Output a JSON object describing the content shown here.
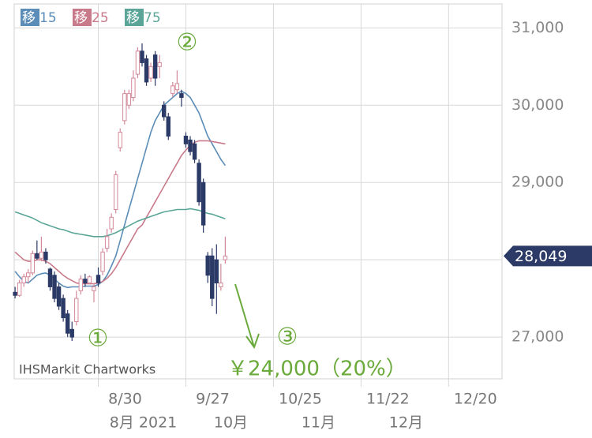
{
  "chart_data": {
    "type": "candlestick",
    "open": [
      27580,
      27540,
      27700,
      27780,
      27830,
      28080,
      28020,
      28100,
      27880,
      27800,
      27650,
      27500,
      27300,
      27100,
      27200,
      27600,
      27750,
      27700,
      27600,
      27800,
      27850,
      28150,
      28400,
      28650,
      29450,
      29800,
      30000,
      30100,
      30400,
      30700,
      30600,
      30350,
      30650,
      30500,
      30000,
      29850,
      30150,
      30200,
      30150,
      29600,
      29550,
      29500,
      29250,
      29000,
      28050,
      28050,
      28000,
      27650,
      28000
    ],
    "high": [
      27650,
      27740,
      27820,
      27880,
      28120,
      28250,
      28300,
      28150,
      27900,
      27850,
      27700,
      27550,
      27350,
      27200,
      27600,
      27800,
      27820,
      27800,
      27700,
      27900,
      28150,
      28400,
      28600,
      29150,
      29700,
      30200,
      30200,
      30450,
      30750,
      30800,
      30650,
      30550,
      30700,
      30650,
      30050,
      29900,
      30300,
      30450,
      30200,
      29650,
      29600,
      29550,
      29300,
      29050,
      28100,
      28150,
      28200,
      27950,
      28300
    ],
    "low": [
      27500,
      27520,
      27650,
      27700,
      27800,
      28000,
      27980,
      27950,
      27600,
      27450,
      27350,
      27200,
      27000,
      26950,
      27150,
      27550,
      27650,
      27680,
      27450,
      27650,
      27800,
      28100,
      28350,
      28600,
      29400,
      29750,
      29950,
      30050,
      30350,
      30500,
      30250,
      30300,
      30250,
      30350,
      29800,
      29550,
      30100,
      30150,
      29980,
      29450,
      29350,
      29250,
      28700,
      28350,
      27700,
      27400,
      27300,
      27600,
      27950
    ],
    "close": [
      27540,
      27700,
      27780,
      27830,
      28080,
      28020,
      28100,
      28000,
      27650,
      27500,
      27400,
      27250,
      27050,
      27000,
      27500,
      27750,
      27700,
      27780,
      27650,
      27700,
      28100,
      28300,
      28550,
      29100,
      29650,
      30150,
      30150,
      30350,
      30700,
      30550,
      30300,
      30500,
      30350,
      30550,
      29850,
      29600,
      30250,
      30280,
      30100,
      29500,
      29400,
      29300,
      28750,
      28450,
      27800,
      27500,
      27700,
      27700,
      28049
    ],
    "up_color": "#d4899a",
    "down_color": "#2b3a66",
    "series": [
      {
        "name": "移 15",
        "color": "#5b8db8",
        "values": [
          27850,
          27780,
          27720,
          27700,
          27750,
          27800,
          27820,
          27830,
          27800,
          27750,
          27700,
          27660,
          27640,
          27650,
          27650,
          27650,
          27660,
          27660,
          27660,
          27680,
          27720,
          27800,
          27920,
          28050,
          28250,
          28450,
          28650,
          28850,
          29050,
          29250,
          29450,
          29650,
          29800,
          29900,
          30000,
          30050,
          30100,
          30150,
          30180,
          30150,
          30100,
          30000,
          29900,
          29750,
          29600,
          29500,
          29400,
          29300,
          29220
        ]
      },
      {
        "name": "移 25",
        "color": "#c97a8a",
        "values": [
          28100,
          28050,
          28000,
          27980,
          27980,
          28000,
          28000,
          27980,
          27950,
          27900,
          27850,
          27800,
          27760,
          27730,
          27700,
          27690,
          27690,
          27690,
          27690,
          27700,
          27720,
          27760,
          27820,
          27900,
          28000,
          28100,
          28200,
          28300,
          28400,
          28450,
          28550,
          28650,
          28750,
          28850,
          28950,
          29050,
          29150,
          29250,
          29350,
          29420,
          29480,
          29520,
          29540,
          29540,
          29540,
          29530,
          29520,
          29510,
          29500
        ]
      },
      {
        "name": "移 75",
        "color": "#5aa597",
        "values": [
          28620,
          28600,
          28580,
          28560,
          28540,
          28510,
          28480,
          28460,
          28440,
          28420,
          28400,
          28390,
          28370,
          28350,
          28340,
          28330,
          28320,
          28310,
          28300,
          28300,
          28300,
          28310,
          28330,
          28350,
          28380,
          28410,
          28440,
          28470,
          28500,
          28520,
          28540,
          28560,
          28580,
          28600,
          28620,
          28630,
          28640,
          28650,
          28650,
          28650,
          28660,
          28650,
          28640,
          28620,
          28600,
          28590,
          28570,
          28550,
          28530
        ]
      }
    ],
    "ylim": [
      26460,
      31310
    ],
    "yticks": [
      {
        "value": 27000,
        "label": "27,000"
      },
      {
        "value": 28000,
        "label": "28,000"
      },
      {
        "value": 29000,
        "label": "29,000"
      },
      {
        "value": 30000,
        "label": "30,000"
      },
      {
        "value": 31000,
        "label": "31,000"
      }
    ],
    "xlim": [
      -0.2,
      111.2
    ],
    "xticks": [
      {
        "value": 19,
        "label": "8/30"
      },
      {
        "value": 39,
        "label": "9/27"
      },
      {
        "value": 59,
        "label": "10/25"
      },
      {
        "value": 79,
        "label": "11/22"
      },
      {
        "value": 99,
        "label": "12/20"
      }
    ],
    "month_labels": [
      {
        "value": 19,
        "label": "8月 2021"
      },
      {
        "value": 39,
        "label": "10月"
      },
      {
        "value": 59,
        "label": "11月"
      },
      {
        "value": 79,
        "label": "12月"
      }
    ],
    "last_price": {
      "value": 28049,
      "label": "28,049"
    },
    "grid": true,
    "annotations": [
      "①",
      "②",
      "③",
      "￥24,000（20%）"
    ],
    "source": "IHSMarkit Chartworks"
  }
}
